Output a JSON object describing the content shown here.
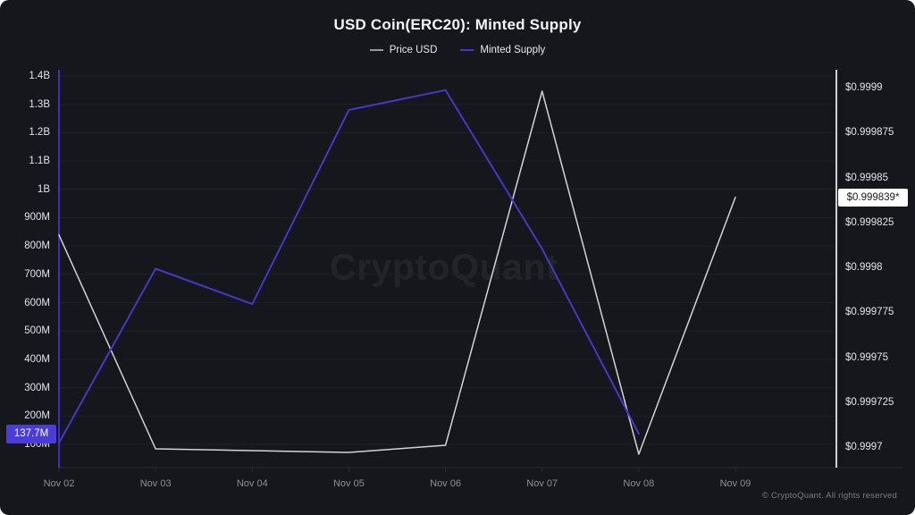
{
  "header": {
    "title": "USD Coin(ERC20): Minted Supply"
  },
  "watermark": {
    "text": "CryptoQuant"
  },
  "footer": {
    "copyright": "© CryptoQuant. All rights reserved"
  },
  "chart_data": {
    "type": "line",
    "title": "USD Coin(ERC20): Minted Supply",
    "legend_position": "top",
    "grid": true,
    "categories": [
      "Nov 02",
      "Nov 03",
      "Nov 04",
      "Nov 05",
      "Nov 06",
      "Nov 07",
      "Nov 08",
      "Nov 09"
    ],
    "series": [
      {
        "name": "Price USD",
        "axis": "right",
        "color": "#d2d3d7",
        "values": [
          0.999818,
          0.999699,
          0.999698,
          0.999697,
          0.999701,
          0.999898,
          0.999696,
          0.999839
        ]
      },
      {
        "name": "Minted Supply",
        "axis": "left",
        "color": "#4438c8",
        "values": [
          105000000,
          720000000,
          595000000,
          1280000000,
          1350000000,
          790000000,
          137700000,
          null
        ]
      }
    ],
    "left_axis": {
      "min": 100000000,
      "max": 1400000000,
      "tick_step": 100000000,
      "ticks": [
        {
          "value": 100000000,
          "label": "100M"
        },
        {
          "value": 200000000,
          "label": "200M"
        },
        {
          "value": 300000000,
          "label": "300M"
        },
        {
          "value": 400000000,
          "label": "400M"
        },
        {
          "value": 500000000,
          "label": "500M"
        },
        {
          "value": 600000000,
          "label": "600M"
        },
        {
          "value": 700000000,
          "label": "700M"
        },
        {
          "value": 800000000,
          "label": "800M"
        },
        {
          "value": 900000000,
          "label": "900M"
        },
        {
          "value": 1000000000,
          "label": "1B"
        },
        {
          "value": 1100000000,
          "label": "1.1B"
        },
        {
          "value": 1200000000,
          "label": "1.2B"
        },
        {
          "value": 1300000000,
          "label": "1.3B"
        },
        {
          "value": 1400000000,
          "label": "1.4B"
        }
      ],
      "current_value": 137700000,
      "current_value_label": "137.7M"
    },
    "right_axis": {
      "min": 0.9997,
      "max": 0.9999,
      "tick_step": 2.5e-05,
      "ticks": [
        {
          "value": 0.9997,
          "label": "$0.9997"
        },
        {
          "value": 0.999725,
          "label": "$0.999725"
        },
        {
          "value": 0.99975,
          "label": "$0.99975"
        },
        {
          "value": 0.999775,
          "label": "$0.999775"
        },
        {
          "value": 0.9998,
          "label": "$0.9998"
        },
        {
          "value": 0.999825,
          "label": "$0.999825"
        },
        {
          "value": 0.99985,
          "label": "$0.99985"
        },
        {
          "value": 0.999875,
          "label": "$0.999875"
        },
        {
          "value": 0.9999,
          "label": "$0.9999"
        }
      ],
      "current_value": 0.999839,
      "current_value_label": "$0.999839*"
    },
    "colors": {
      "background": "#16171c",
      "grid": "#1f2026",
      "axis_line": "#2b2c33",
      "left_spine": "#3d31bb",
      "right_spine": "#cfd0d4",
      "badge_left_bg": "#4a3cd9",
      "badge_right_bg": "#ffffff"
    }
  }
}
